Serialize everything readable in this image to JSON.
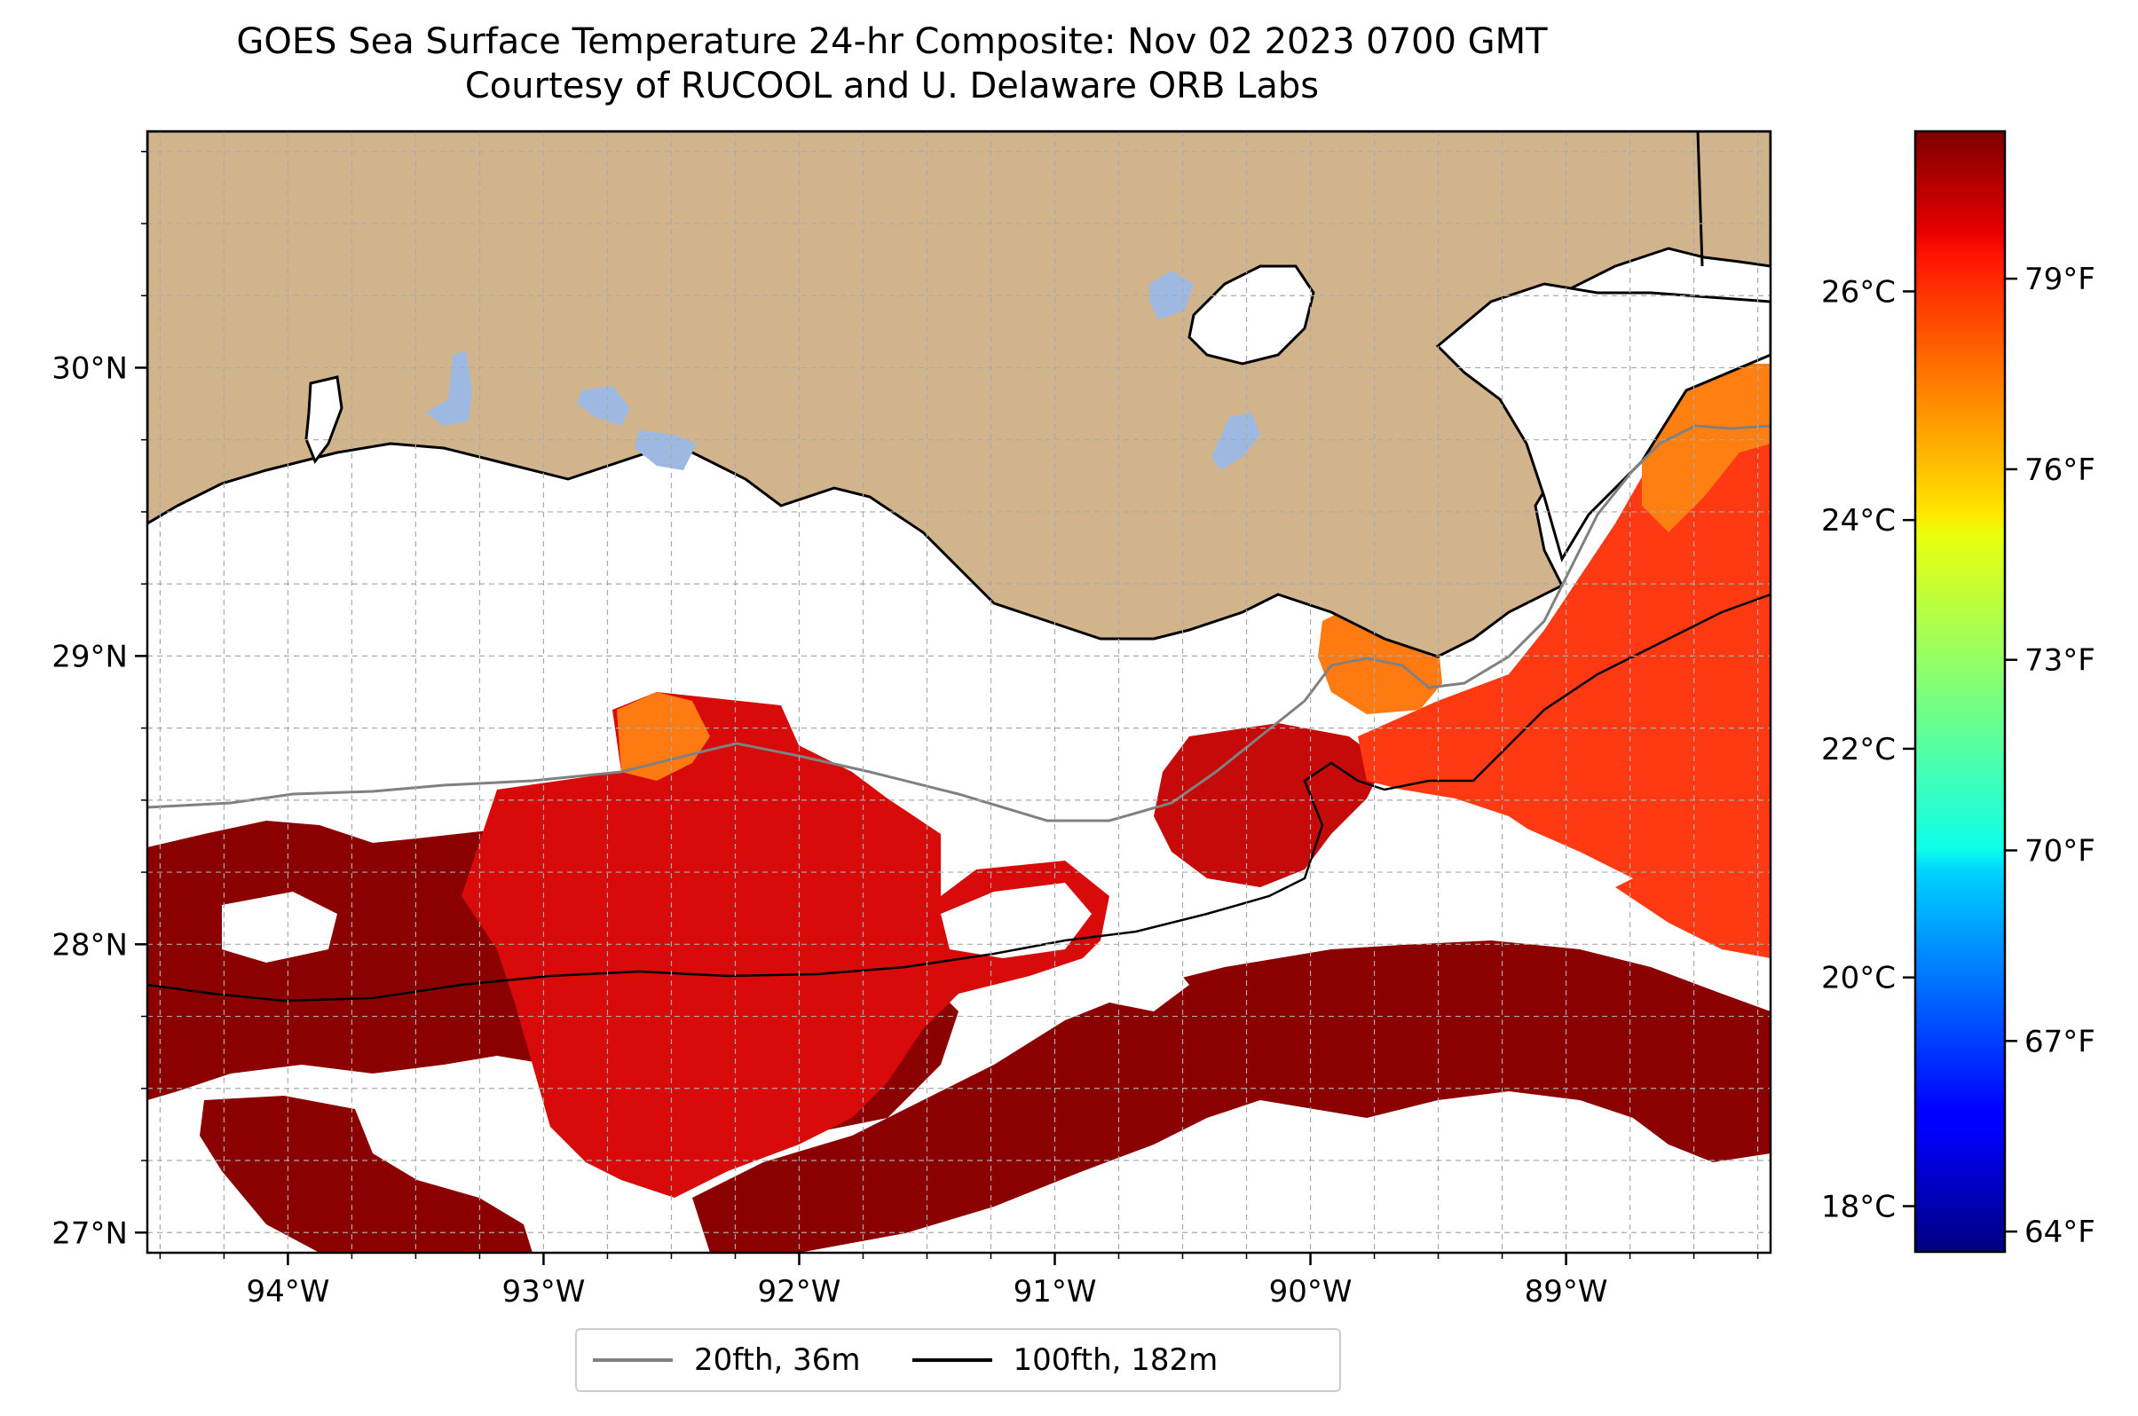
{
  "title": {
    "line1": "GOES Sea Surface Temperature 24-hr Composite: Nov 02 2023 0700 GMT",
    "line2": "Courtesy of RUCOOL and U. Delaware ORB Labs"
  },
  "map": {
    "extent": {
      "lon_min": -94.55,
      "lon_max": -88.2,
      "lat_min": 26.93,
      "lat_max": 30.82
    },
    "lon_ticks": [
      {
        "value": -94,
        "label": "94°W"
      },
      {
        "value": -93,
        "label": "93°W"
      },
      {
        "value": -92,
        "label": "92°W"
      },
      {
        "value": -91,
        "label": "91°W"
      },
      {
        "value": -90,
        "label": "90°W"
      },
      {
        "value": -89,
        "label": "89°W"
      }
    ],
    "lat_ticks": [
      {
        "value": 27,
        "label": "27°N"
      },
      {
        "value": 28,
        "label": "28°N"
      },
      {
        "value": 29,
        "label": "29°N"
      },
      {
        "value": 30,
        "label": "30°N"
      }
    ],
    "colors": {
      "land": "#d2b48c",
      "lakes": "#9db9e2",
      "ocean_nodata": "#ffffff",
      "sst_dark": "#8b0000",
      "sst_red": "#d40a0a",
      "sst_orange_red": "#ff3a10",
      "sst_orange": "#ff8a10",
      "isobath_20": "#808080",
      "isobath_100": "#000000"
    }
  },
  "colorbar": {
    "colormap": "jet",
    "celsius_min": 17.6,
    "celsius_max": 27.4,
    "celsius_ticks": [
      {
        "value": 18,
        "label": "18°C"
      },
      {
        "value": 20,
        "label": "20°C"
      },
      {
        "value": 22,
        "label": "22°C"
      },
      {
        "value": 24,
        "label": "24°C"
      },
      {
        "value": 26,
        "label": "26°C"
      }
    ],
    "fahrenheit_ticks": [
      {
        "value": 64,
        "label": "64°F"
      },
      {
        "value": 67,
        "label": "67°F"
      },
      {
        "value": 70,
        "label": "70°F"
      },
      {
        "value": 73,
        "label": "73°F"
      },
      {
        "value": 76,
        "label": "76°F"
      },
      {
        "value": 79,
        "label": "79°F"
      }
    ]
  },
  "legend": {
    "entries": [
      {
        "label": "20fth, 36m",
        "color": "#808080"
      },
      {
        "label": "100fth, 182m",
        "color": "#000000"
      }
    ]
  }
}
